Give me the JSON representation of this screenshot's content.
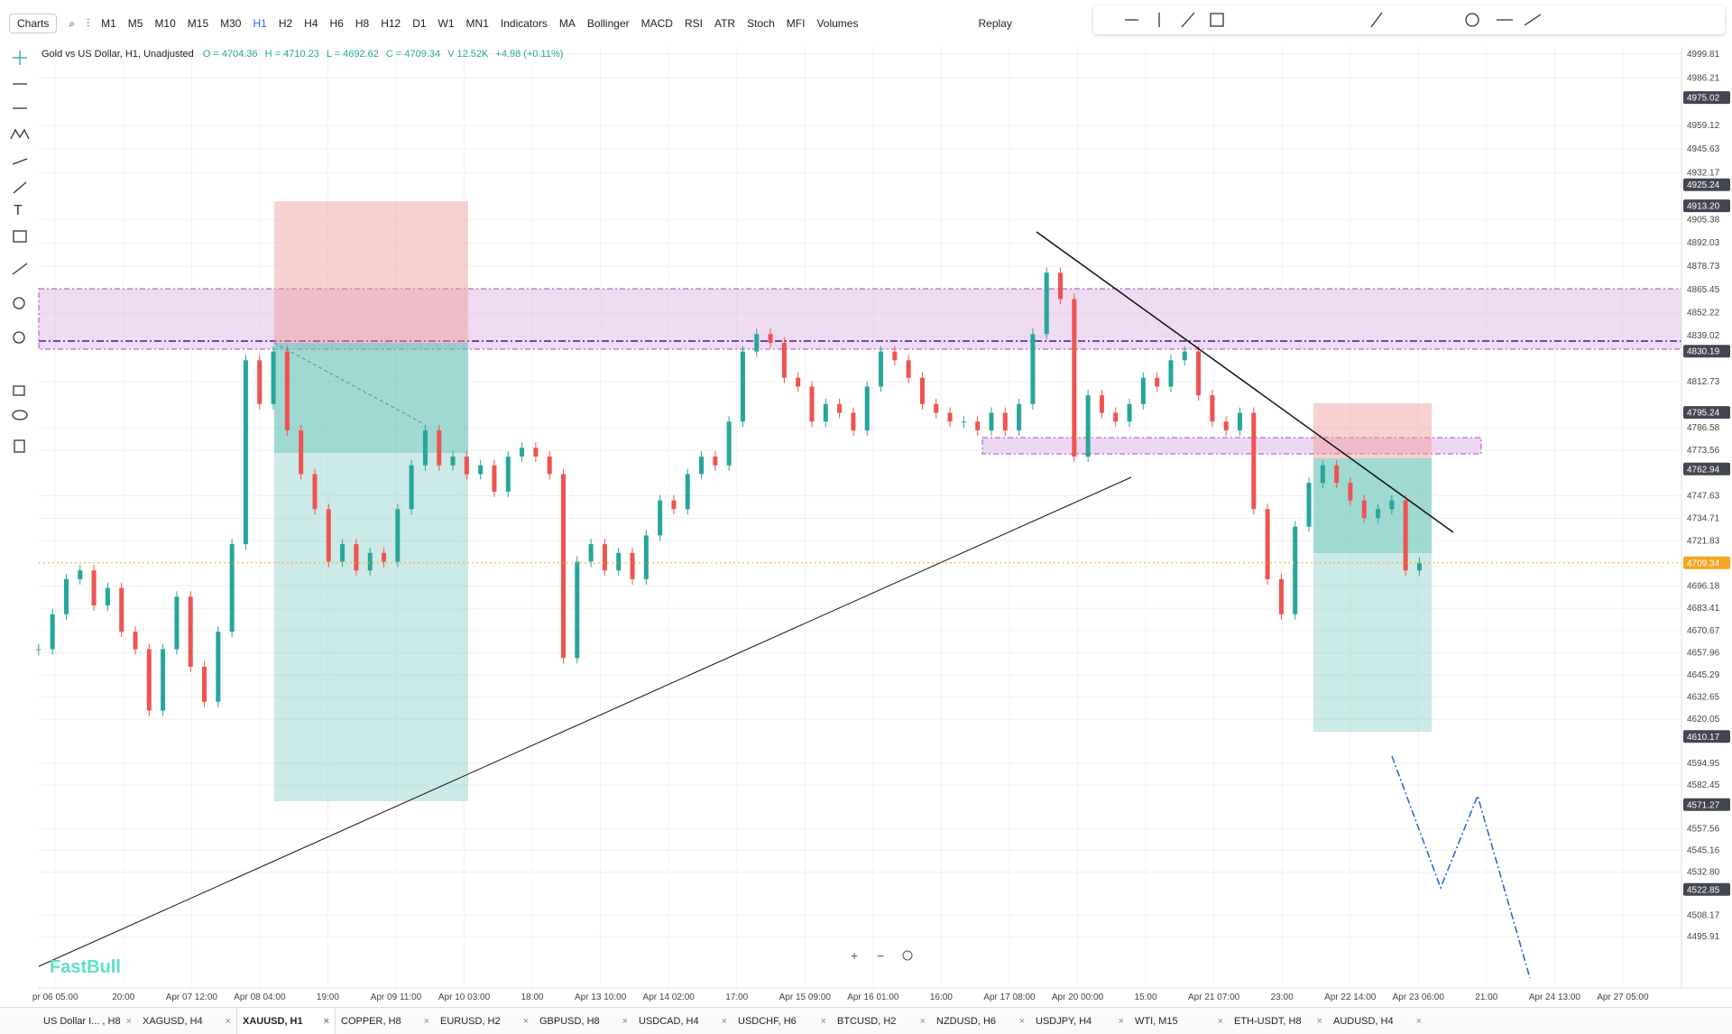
{
  "toolbar": {
    "charts": "Charts",
    "timeframes": [
      "M1",
      "M5",
      "M10",
      "M15",
      "M30",
      "H1",
      "H2",
      "H4",
      "H6",
      "H8",
      "H12",
      "D1",
      "W1",
      "MN1"
    ],
    "active_timeframe": 5,
    "indicators": "Indicators",
    "indicator_list": [
      "MA",
      "Bollinger",
      "MACD",
      "RSI",
      "ATR",
      "Stoch",
      "MFI",
      "Volumes"
    ],
    "replay": "Replay"
  },
  "header": {
    "symbol": "Gold vs US Dollar, H1, Unadjusted",
    "stats": [
      "O = 4704.36",
      "H = 4710.23",
      "L = 4692.62",
      "C = 4709.34",
      "V 12.52K",
      "+4.98 (+0.11%)"
    ]
  },
  "price_axis": {
    "labels": [
      "4999.81",
      "4986.21",
      "4959.12",
      "4945.63",
      "4932.17",
      "4905.38",
      "4892.03",
      "4878.73",
      "4865.45",
      "4852.22",
      "4839.02",
      "4812.73",
      "4786.58",
      "4773.56",
      "4747.63",
      "4734.71",
      "4721.83",
      "4696.18",
      "4683.41",
      "4670.67",
      "4657.96",
      "4645.29",
      "4632.65",
      "4620.05",
      "4594.95",
      "4582.45",
      "4557.56",
      "4545.16",
      "4532.80",
      "4508.17",
      "4495.91"
    ],
    "tags": [
      {
        "value": "4975.02",
        "color": "#434651"
      },
      {
        "value": "4925.24",
        "color": "#434651"
      },
      {
        "value": "4913.20",
        "color": "#434651"
      },
      {
        "value": "4830.19",
        "color": "#434651"
      },
      {
        "value": "4795.24",
        "color": "#434651"
      },
      {
        "value": "4762.94",
        "color": "#434651"
      },
      {
        "value": "4709.34",
        "color": "#f5a623"
      },
      {
        "value": "4610.17",
        "color": "#434651"
      },
      {
        "value": "4571.27",
        "color": "#434651"
      },
      {
        "value": "4522.85",
        "color": "#434651"
      }
    ]
  },
  "time_axis": [
    "pr 06 05:00",
    "20:00",
    "Apr 07 12:00",
    "Apr 08 04:00",
    "19:00",
    "Apr 09 11:00",
    "Apr 10 03:00",
    "18:00",
    "Apr 13 10:00",
    "Apr 14 02:00",
    "17:00",
    "Apr 15 09:00",
    "Apr 16 01:00",
    "16:00",
    "Apr 17 08:00",
    "Apr 20 00:00",
    "15:00",
    "Apr 21 07:00",
    "23:00",
    "Apr 22 14:00",
    "Apr 23 06:00",
    "21:00",
    "Apr 24 13:00",
    "Apr 27 05:00"
  ],
  "closes": [
    4660,
    4680,
    4700,
    4705,
    4685,
    4695,
    4670,
    4660,
    4625,
    4660,
    4690,
    4650,
    4630,
    4670,
    4720,
    4825,
    4800,
    4830,
    4785,
    4760,
    4740,
    4710,
    4720,
    4705,
    4715,
    4710,
    4740,
    4765,
    4785,
    4765,
    4770,
    4760,
    4765,
    4750,
    4770,
    4775,
    4770,
    4760,
    4655,
    4710,
    4720,
    4705,
    4715,
    4700,
    4725,
    4745,
    4740,
    4760,
    4770,
    4765,
    4790,
    4830,
    4840,
    4835,
    4815,
    4810,
    4790,
    4800,
    4795,
    4785,
    4810,
    4830,
    4825,
    4815,
    4800,
    4795,
    4790,
    4790,
    4785,
    4795,
    4785,
    4800,
    4840,
    4875,
    4860,
    4770,
    4805,
    4795,
    4790,
    4800,
    4815,
    4810,
    4825,
    4830,
    4805,
    4790,
    4785,
    4795,
    4740,
    4700,
    4680,
    4730,
    4755,
    4765,
    4755,
    4745,
    4735,
    4740,
    4745,
    4705,
    4709.34
  ],
  "tabs": [
    "US Dollar I... , H8",
    "XAGUSD, H4",
    "XAUUSD, H1",
    "COPPER, H8",
    "EURUSD, H2",
    "GBPUSD, H8",
    "USDCAD, H4",
    "USDCHF, H6",
    "BTCUSD, H2",
    "NZDUSD, H6",
    "USDJPY, H4",
    "WTI, M15",
    "ETH-USDT, H8",
    "AUDUSD, H4"
  ],
  "active_tab": 2,
  "watermark": "FastBull"
}
